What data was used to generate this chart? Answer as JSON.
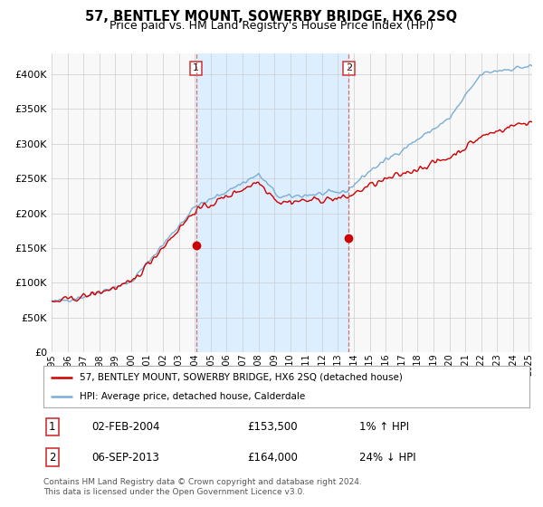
{
  "title": "57, BENTLEY MOUNT, SOWERBY BRIDGE, HX6 2SQ",
  "subtitle": "Price paid vs. HM Land Registry's House Price Index (HPI)",
  "ytick_values": [
    0,
    50000,
    100000,
    150000,
    200000,
    250000,
    300000,
    350000,
    400000
  ],
  "ylim": [
    0,
    430000
  ],
  "xlim_start": 1995.0,
  "xlim_end": 2025.2,
  "hpi_color": "#7aaed6",
  "hpi_fill_color": "#ddeeff",
  "price_color": "#cc0000",
  "marker1_x": 2004.08,
  "marker1_y": 153500,
  "marker2_x": 2013.67,
  "marker2_y": 164000,
  "vline_color": "#cc6666",
  "legend_label1": "57, BENTLEY MOUNT, SOWERBY BRIDGE, HX6 2SQ (detached house)",
  "legend_label2": "HPI: Average price, detached house, Calderdale",
  "note1_label": "1",
  "note1_date": "02-FEB-2004",
  "note1_price": "£153,500",
  "note1_hpi": "1% ↑ HPI",
  "note2_label": "2",
  "note2_date": "06-SEP-2013",
  "note2_price": "£164,000",
  "note2_hpi": "24% ↓ HPI",
  "footer": "Contains HM Land Registry data © Crown copyright and database right 2024.\nThis data is licensed under the Open Government Licence v3.0.",
  "bg_color": "#ffffff",
  "plot_bg_color": "#f8f8f8",
  "grid_color": "#cccccc",
  "title_fontsize": 10.5,
  "subtitle_fontsize": 9
}
